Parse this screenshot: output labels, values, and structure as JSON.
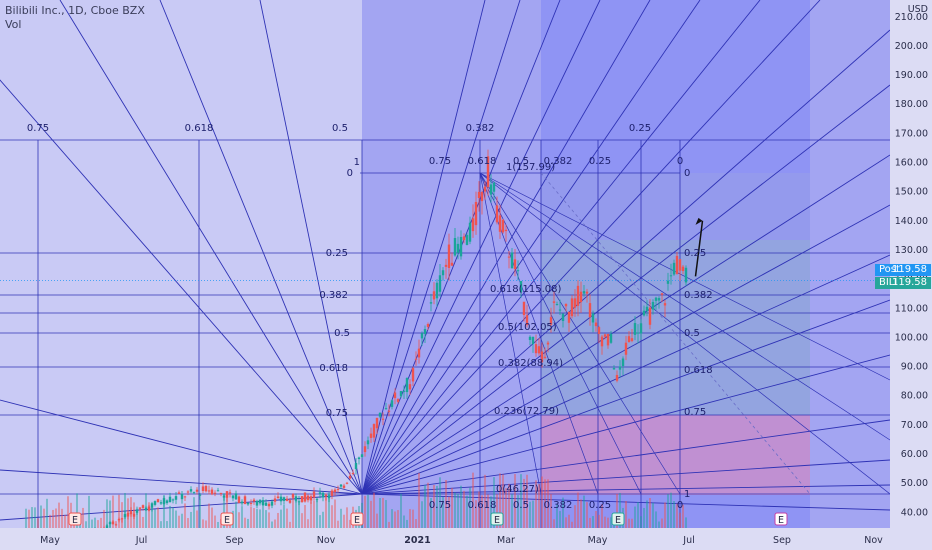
{
  "header": {
    "symbol_line": "Bilibili Inc., 1D, Cboe BZX",
    "volume_label": "Vol"
  },
  "price_axis": {
    "currency": "USD",
    "ticks": [
      "210.00",
      "200.00",
      "190.00",
      "180.00",
      "170.00",
      "160.00",
      "150.00",
      "140.00",
      "130.00",
      "120.00",
      "110.00",
      "100.00",
      "90.00",
      "80.00",
      "70.00",
      "60.00",
      "50.00",
      "40.00"
    ]
  },
  "time_axis": {
    "labels": [
      "May",
      "Jul",
      "Sep",
      "Nov",
      "2021",
      "Mar",
      "May",
      "Jul",
      "Sep",
      "Nov"
    ]
  },
  "tags": {
    "post": {
      "label": "Post",
      "value": "119.58",
      "color": "#2196f3"
    },
    "last": {
      "label": "BILI",
      "value": "119.58",
      "color": "#26a69a"
    }
  },
  "events": [
    "E",
    "E",
    "E",
    "E",
    "E",
    "E"
  ],
  "fib_labels": {
    "outer_fan": [
      "0.75",
      "0.618",
      "0.5",
      "0.382",
      "0.25"
    ],
    "left_levels": [
      "0",
      "0.25",
      "0.382",
      "0.5",
      "0.618",
      "0.75",
      "1"
    ],
    "inner_fan_top": [
      "0.75",
      "0.618",
      "0.5",
      "0.382",
      "0.25",
      "0"
    ],
    "inner_fan_bottom": [
      "0.75",
      "0.618",
      "0.5",
      "0.382",
      "0.25",
      "0"
    ],
    "right_levels": [
      "0",
      "0.25",
      "0.382",
      "0.5",
      "0.618",
      "0.75",
      "1"
    ],
    "retracement": [
      "1(157.99)",
      "0.618(115.08)",
      "0.5(102.05)",
      "0.382(88.94)",
      "0.236(72.79)",
      "0(46.27)"
    ]
  },
  "colors": {
    "background": "#c9caf5",
    "outer_zone": "#a3a5f2",
    "inner_zone": "#8c90f4",
    "grid_line": "#2f33b5",
    "candle_up": "#1aa59a",
    "candle_down": "#ef5350",
    "pink_zone": "#cc8fc9",
    "green_zone": "#9ab7c8"
  },
  "chart_data": {
    "type": "candlestick",
    "title": "Bilibili Inc., 1D, Cboe BZX",
    "ylabel": "USD",
    "ylim": [
      37,
      213
    ],
    "x_range": [
      "2020-04-01",
      "2021-11-30"
    ],
    "grid": true,
    "close_path": [
      [
        "2020-04-15",
        24
      ],
      [
        "2020-06-01",
        34
      ],
      [
        "2020-07-15",
        44
      ],
      [
        "2020-08-15",
        48
      ],
      [
        "2020-09-15",
        43
      ],
      [
        "2020-10-15",
        45
      ],
      [
        "2020-11-10",
        47
      ],
      [
        "2020-11-25",
        60
      ],
      [
        "2020-12-10",
        75
      ],
      [
        "2020-12-28",
        85
      ],
      [
        "2021-01-10",
        110
      ],
      [
        "2021-01-22",
        128
      ],
      [
        "2021-02-05",
        135
      ],
      [
        "2021-02-17",
        157
      ],
      [
        "2021-02-25",
        140
      ],
      [
        "2021-03-08",
        122
      ],
      [
        "2021-03-18",
        100
      ],
      [
        "2021-03-25",
        92
      ],
      [
        "2021-04-02",
        110
      ],
      [
        "2021-04-12",
        108
      ],
      [
        "2021-04-22",
        118
      ],
      [
        "2021-04-30",
        102
      ],
      [
        "2021-05-10",
        98
      ],
      [
        "2021-05-14",
        85
      ],
      [
        "2021-05-24",
        102
      ],
      [
        "2021-06-05",
        108
      ],
      [
        "2021-06-15",
        114
      ],
      [
        "2021-06-22",
        126
      ],
      [
        "2021-06-30",
        119.58
      ]
    ],
    "last_price": 119.58,
    "projection_target": [
      "2021-07-10",
      140
    ]
  }
}
